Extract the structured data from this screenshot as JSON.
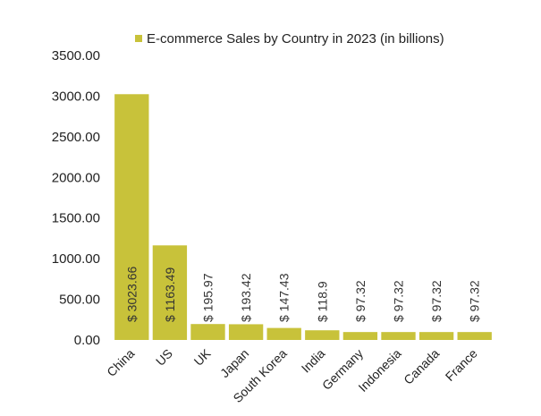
{
  "chart_data": {
    "type": "bar",
    "legend": "E-commerce Sales by Country in 2023 (in billions)",
    "legend_position": "top",
    "categories": [
      "China",
      "US",
      "UK",
      "Japan",
      "South Korea",
      "India",
      "Germany",
      "Indonesia",
      "Canada",
      "France"
    ],
    "values": [
      3023.66,
      1163.49,
      195.97,
      193.42,
      147.43,
      118.9,
      97.32,
      97.32,
      97.32,
      97.32
    ],
    "data_labels": [
      "$ 3023.66",
      "$ 1163.49",
      "$ 195.97",
      "$ 193.42",
      "$ 147.43",
      "$ 118.9",
      "$ 97.32",
      "$ 97.32",
      "$ 97.32",
      "$ 97.32"
    ],
    "y_ticks": [
      "0.00",
      "500.00",
      "1000.00",
      "1500.00",
      "2000.00",
      "2500.00",
      "3000.00",
      "3500.00"
    ],
    "ylim": [
      0,
      3500
    ],
    "grid": false,
    "bar_color": "#c8c23a"
  }
}
